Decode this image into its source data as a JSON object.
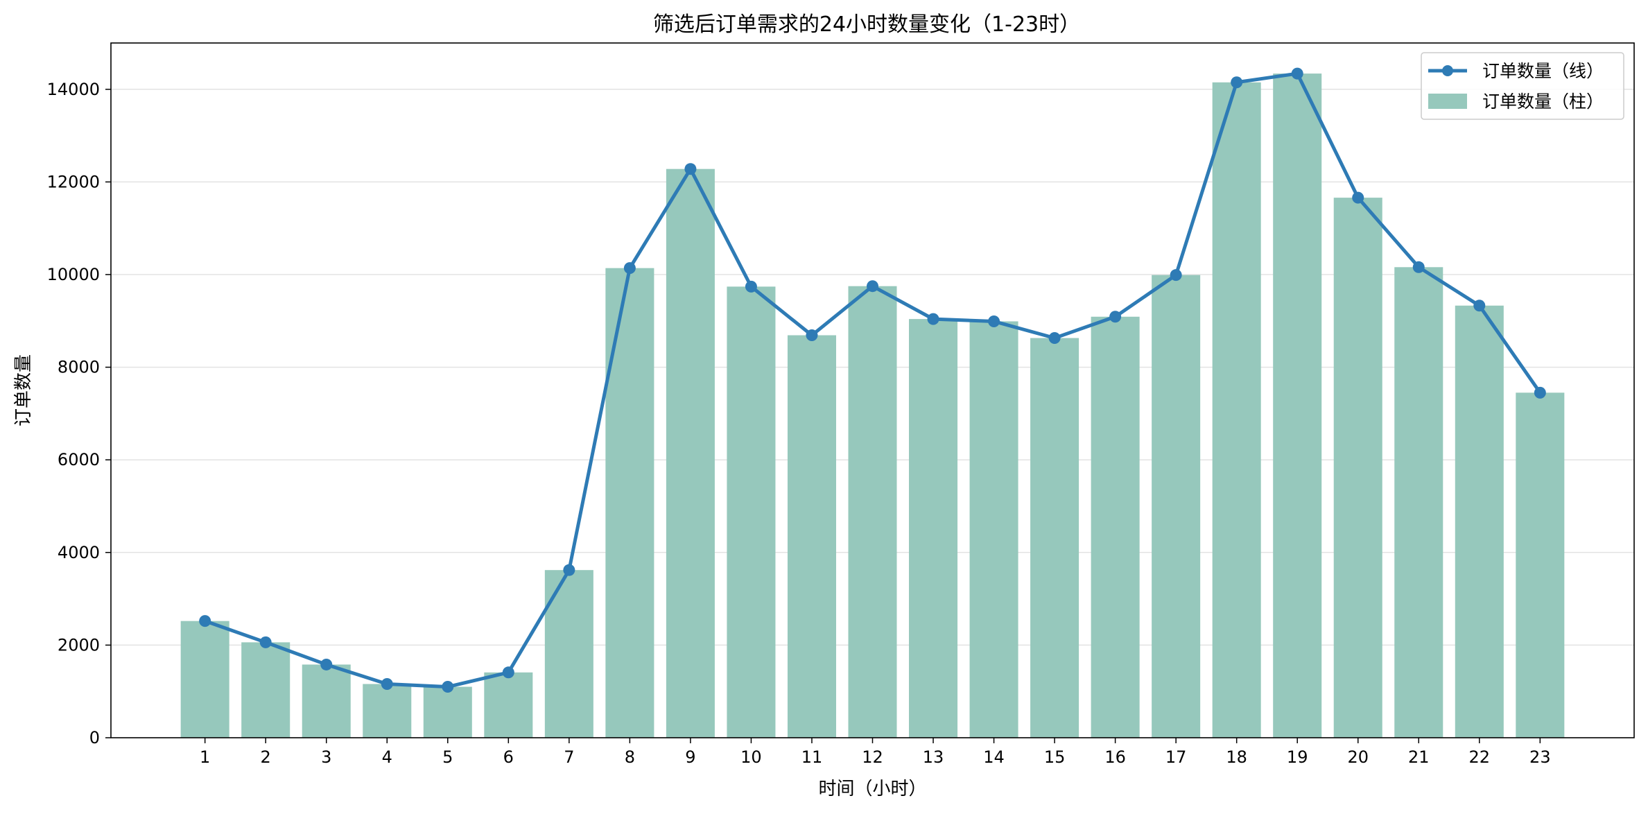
{
  "chart_data": {
    "type": "bar",
    "title": "筛选后订单需求的24小时数量变化（1-23时）",
    "xlabel": "时间（小时）",
    "ylabel": "订单数量",
    "ylim": [
      0,
      15000
    ],
    "yticks": [
      0,
      2000,
      4000,
      6000,
      8000,
      10000,
      12000,
      14000
    ],
    "grid": "horizontal",
    "legend_position": "top-right",
    "categories": [
      "1",
      "2",
      "3",
      "4",
      "5",
      "6",
      "7",
      "8",
      "9",
      "10",
      "11",
      "12",
      "13",
      "14",
      "15",
      "16",
      "17",
      "18",
      "19",
      "20",
      "21",
      "22",
      "23"
    ],
    "series": [
      {
        "name": "订单数量（线）",
        "type": "line",
        "color": "#2e7bb5",
        "values": [
          2520,
          2060,
          1580,
          1160,
          1100,
          1410,
          3620,
          10140,
          12280,
          9740,
          8690,
          9750,
          9040,
          8990,
          8630,
          9090,
          9990,
          14150,
          14340,
          11660,
          10160,
          9330,
          7450
        ]
      },
      {
        "name": "订单数量（柱）",
        "type": "bar",
        "color": "#96c8bc",
        "values": [
          2520,
          2060,
          1580,
          1160,
          1100,
          1410,
          3620,
          10140,
          12280,
          9740,
          8690,
          9750,
          9040,
          8990,
          8630,
          9090,
          9990,
          14150,
          14340,
          11660,
          10160,
          9330,
          7450
        ]
      }
    ]
  }
}
